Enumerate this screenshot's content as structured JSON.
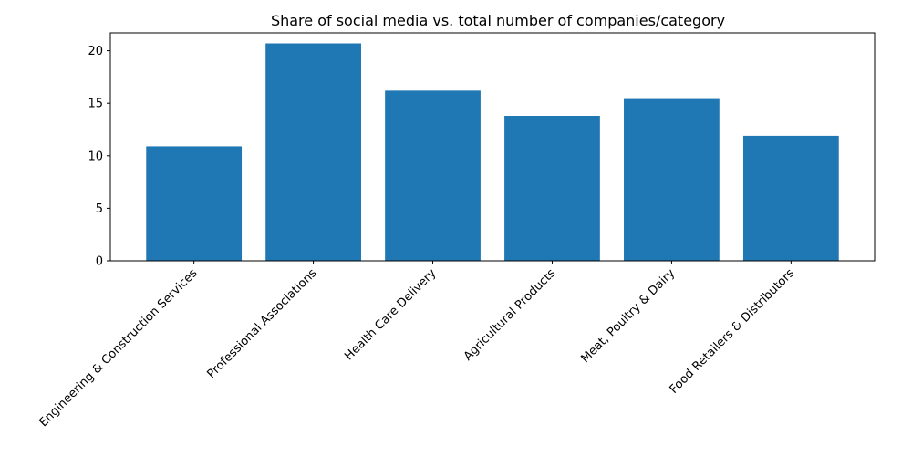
{
  "chart_data": {
    "type": "bar",
    "title": "Share of social media vs. total number of companies/category",
    "xlabel": "",
    "ylabel": "",
    "categories": [
      "Engineering & Construction Services",
      "Professional Associations",
      "Health Care Delivery",
      "Agricultural Products",
      "Meat, Poultry & Dairy",
      "Food Retailers & Distributors"
    ],
    "values": [
      10.9,
      20.7,
      16.2,
      13.8,
      15.4,
      11.9
    ],
    "ylim": [
      0,
      21.7
    ],
    "yticks": [
      0,
      5,
      10,
      15,
      20
    ],
    "bar_color": "#1f77b4",
    "grid": false,
    "legend": "none"
  }
}
